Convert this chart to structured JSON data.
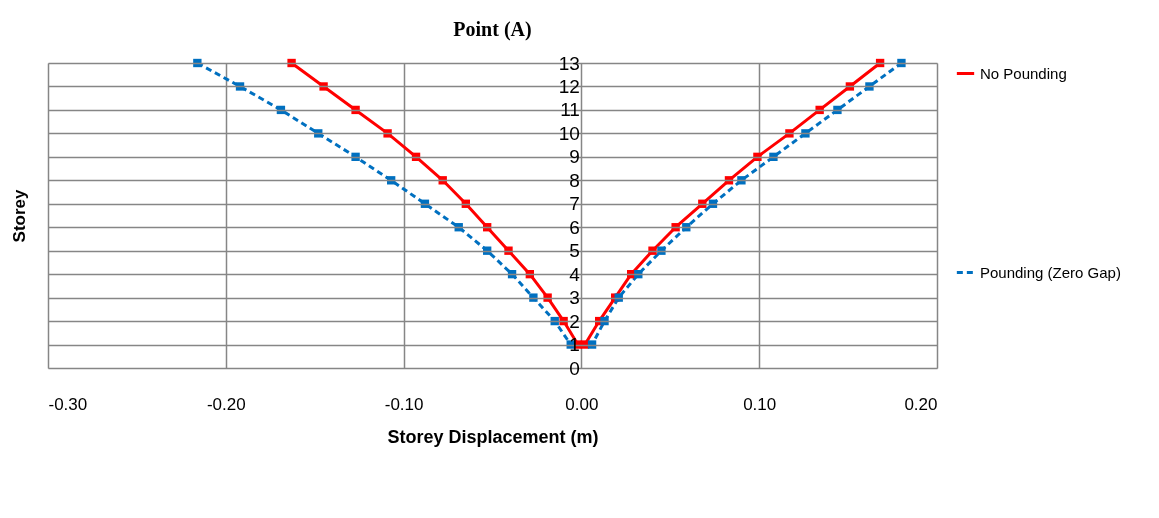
{
  "chart_data": {
    "type": "line",
    "title": "Point (A)",
    "xlabel": "Storey Displacement (m)",
    "ylabel": "Storey",
    "xlim": [
      -0.3,
      0.2
    ],
    "xticks": [
      {
        "value": -0.3,
        "label": "-0.30"
      },
      {
        "value": -0.2,
        "label": "-0.20"
      },
      {
        "value": -0.1,
        "label": "-0.10"
      },
      {
        "value": 0,
        "label": "0.00"
      },
      {
        "value": 0.1,
        "label": "0.10"
      },
      {
        "value": 0.2,
        "label": "0.20"
      }
    ],
    "ylim": [
      0,
      13
    ],
    "yticks": [
      0,
      1,
      2,
      3,
      4,
      5,
      6,
      7,
      8,
      9,
      10,
      11,
      12,
      13
    ],
    "grid": true,
    "legend": "right",
    "marker": "square",
    "series": [
      {
        "name": "No Pounding",
        "color": "#ff0000",
        "line_style": "solid",
        "x": [
          -0.163,
          -0.145,
          -0.127,
          -0.109,
          -0.093,
          -0.078,
          -0.065,
          -0.053,
          -0.041,
          -0.029,
          -0.019,
          -0.01,
          -0.002,
          0.002,
          0.01,
          0.019,
          0.028,
          0.04,
          0.053,
          0.068,
          0.083,
          0.099,
          0.117,
          0.134,
          0.151,
          0.168
        ],
        "values": [
          13,
          12,
          11,
          10,
          9,
          8,
          7,
          6,
          5,
          4,
          3,
          2,
          1,
          1,
          2,
          3,
          4,
          5,
          6,
          7,
          8,
          9,
          10,
          11,
          12,
          13
        ]
      },
      {
        "name": "Pounding (Zero Gap)",
        "color": "#0070c0",
        "line_style": "dashed",
        "x": [
          -0.216,
          -0.192,
          -0.169,
          -0.148,
          -0.127,
          -0.107,
          -0.088,
          -0.069,
          -0.053,
          -0.039,
          -0.027,
          -0.015,
          -0.006,
          0.006,
          0.013,
          0.021,
          0.032,
          0.045,
          0.059,
          0.074,
          0.09,
          0.108,
          0.126,
          0.144,
          0.162,
          0.18
        ],
        "values": [
          13,
          12,
          11,
          10,
          9,
          8,
          7,
          6,
          5,
          4,
          3,
          2,
          1,
          1,
          2,
          3,
          4,
          5,
          6,
          7,
          8,
          9,
          10,
          11,
          12,
          13
        ]
      }
    ]
  }
}
